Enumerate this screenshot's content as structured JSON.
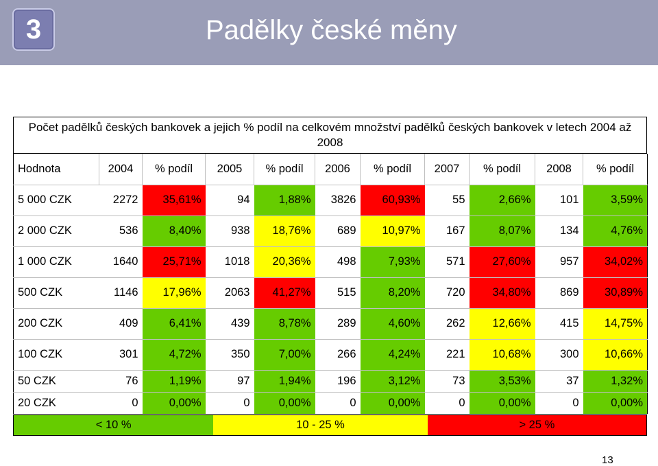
{
  "slide": {
    "number": "3",
    "title": "Padělky české měny",
    "page_number": "13"
  },
  "colors": {
    "header_bg": "#9a9db7",
    "green": "#66cc00",
    "yellow": "#ffff00",
    "red": "#ff0000"
  },
  "table": {
    "caption": "Počet padělků českých bankovek a jejich % podíl na celkovém množství padělků českých bankovek v letech 2004 až 2008",
    "headers": [
      "Hodnota",
      "2004",
      "% podíl",
      "2005",
      "% podíl",
      "2006",
      "% podíl",
      "2007",
      "% podíl",
      "2008",
      "% podíl"
    ],
    "rows": [
      {
        "cells": [
          "5 000 CZK",
          "2272",
          "35,61%",
          "94",
          "1,88%",
          "3826",
          "60,93%",
          "55",
          "2,66%",
          "101",
          "3,59%"
        ],
        "colors": [
          "red",
          "green",
          "red",
          "green",
          "green"
        ]
      },
      {
        "cells": [
          "2 000 CZK",
          "536",
          "8,40%",
          "938",
          "18,76%",
          "689",
          "10,97%",
          "167",
          "8,07%",
          "134",
          "4,76%"
        ],
        "colors": [
          "green",
          "yellow",
          "yellow",
          "green",
          "green"
        ]
      },
      {
        "cells": [
          "1 000 CZK",
          "1640",
          "25,71%",
          "1018",
          "20,36%",
          "498",
          "7,93%",
          "571",
          "27,60%",
          "957",
          "34,02%"
        ],
        "colors": [
          "red",
          "yellow",
          "green",
          "red",
          "red"
        ]
      },
      {
        "cells": [
          "500 CZK",
          "1146",
          "17,96%",
          "2063",
          "41,27%",
          "515",
          "8,20%",
          "720",
          "34,80%",
          "869",
          "30,89%"
        ],
        "colors": [
          "yellow",
          "red",
          "green",
          "red",
          "red"
        ]
      },
      {
        "cells": [
          "200 CZK",
          "409",
          "6,41%",
          "439",
          "8,78%",
          "289",
          "4,60%",
          "262",
          "12,66%",
          "415",
          "14,75%"
        ],
        "colors": [
          "green",
          "green",
          "green",
          "yellow",
          "yellow"
        ]
      },
      {
        "cells": [
          "100 CZK",
          "301",
          "4,72%",
          "350",
          "7,00%",
          "266",
          "4,24%",
          "221",
          "10,68%",
          "300",
          "10,66%"
        ],
        "colors": [
          "green",
          "green",
          "green",
          "yellow",
          "yellow"
        ]
      },
      {
        "cells": [
          "50 CZK",
          "76",
          "1,19%",
          "97",
          "1,94%",
          "196",
          "3,12%",
          "73",
          "3,53%",
          "37",
          "1,32%"
        ],
        "colors": [
          "green",
          "green",
          "green",
          "green",
          "green"
        ]
      },
      {
        "cells": [
          "20 CZK",
          "0",
          "0,00%",
          "0",
          "0,00%",
          "0",
          "0,00%",
          "0",
          "0,00%",
          "0",
          "0,00%"
        ],
        "colors": [
          "green",
          "green",
          "green",
          "green",
          "green"
        ]
      }
    ],
    "legend": [
      {
        "label": "< 10 %",
        "color": "green"
      },
      {
        "label": "10 - 25 %",
        "color": "yellow"
      },
      {
        "label": "> 25 %",
        "color": "red"
      }
    ]
  }
}
